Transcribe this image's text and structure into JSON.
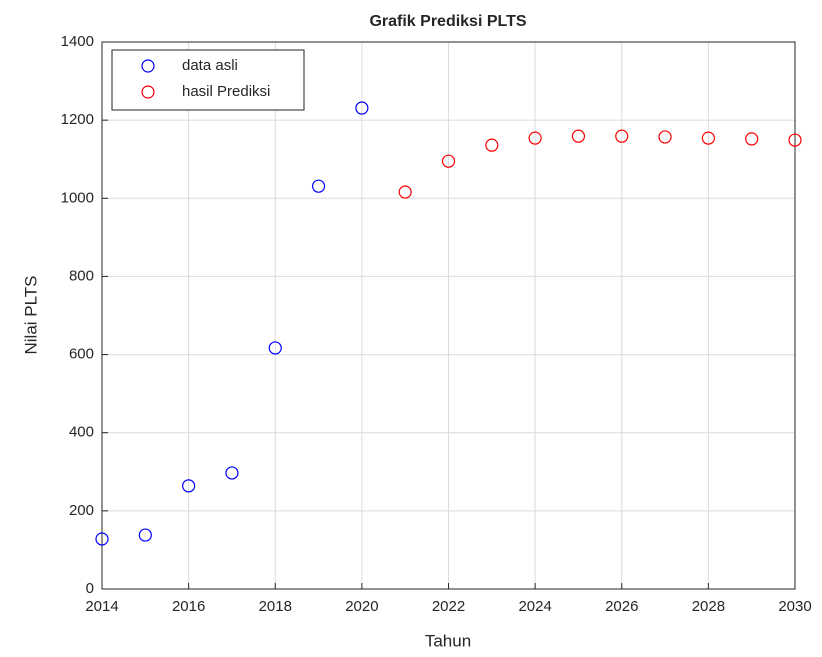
{
  "chart_data": {
    "type": "scatter",
    "title": "Grafik Prediksi PLTS",
    "xlabel": "Tahun",
    "ylabel": "Nilai PLTS",
    "series": [
      {
        "name": "data asli",
        "color": "#0000ff",
        "x": [
          2014,
          2015,
          2016,
          2017,
          2018,
          2019,
          2020
        ],
        "values": [
          128,
          138,
          264,
          297,
          617,
          1031,
          1231
        ]
      },
      {
        "name": "hasil Prediksi",
        "color": "#ff0000",
        "x": [
          2021,
          2022,
          2023,
          2024,
          2025,
          2026,
          2027,
          2028,
          2029,
          2030
        ],
        "values": [
          1016,
          1095,
          1136,
          1154,
          1159,
          1159,
          1157,
          1154,
          1152,
          1149
        ]
      }
    ],
    "xlim": [
      2014,
      2030
    ],
    "xticks": [
      2014,
      2016,
      2018,
      2020,
      2022,
      2024,
      2026,
      2028,
      2030
    ],
    "ylim": [
      0,
      1400
    ],
    "yticks": [
      0,
      200,
      400,
      600,
      800,
      1000,
      1200,
      1400
    ],
    "grid": true,
    "legend": "northwest"
  }
}
